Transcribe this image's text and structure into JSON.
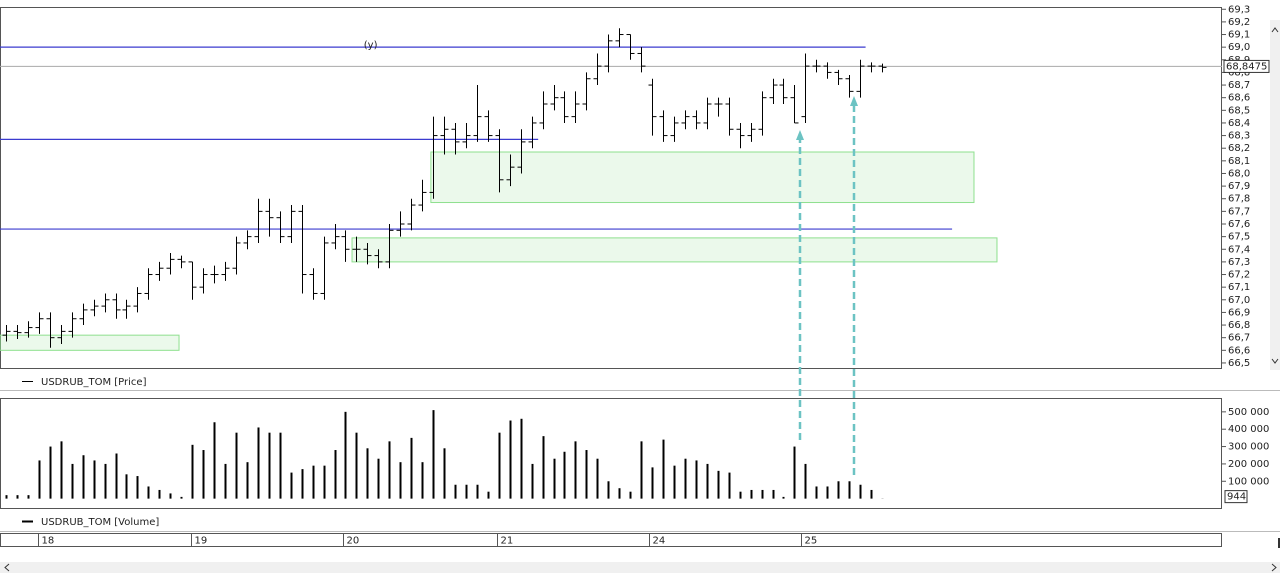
{
  "chart_data": [
    {
      "type": "ohlc",
      "annotation": "(y)",
      "annotation_x": 33.3,
      "annotation_y": 69.0,
      "xlim": [
        -0.55,
        111.05
      ],
      "ylim": [
        66.46,
        69.31
      ],
      "yticks": [
        {
          "value": 66.5,
          "label": "66,5"
        },
        {
          "value": 66.6,
          "label": "66,6"
        },
        {
          "value": 66.7,
          "label": "66,7"
        },
        {
          "value": 66.8,
          "label": "66,8"
        },
        {
          "value": 66.9,
          "label": "66,9"
        },
        {
          "value": 67.0,
          "label": "67,0"
        },
        {
          "value": 67.1,
          "label": "67,1"
        },
        {
          "value": 67.2,
          "label": "67,2"
        },
        {
          "value": 67.3,
          "label": "67,3"
        },
        {
          "value": 67.4,
          "label": "67,4"
        },
        {
          "value": 67.5,
          "label": "67,5"
        },
        {
          "value": 67.6,
          "label": "67,6"
        },
        {
          "value": 67.7,
          "label": "67,7"
        },
        {
          "value": 67.8,
          "label": "67,8"
        },
        {
          "value": 67.9,
          "label": "67,9"
        },
        {
          "value": 68.0,
          "label": "68,0"
        },
        {
          "value": 68.1,
          "label": "68,1"
        },
        {
          "value": 68.2,
          "label": "68,2"
        },
        {
          "value": 68.3,
          "label": "68,3"
        },
        {
          "value": 68.4,
          "label": "68,4"
        },
        {
          "value": 68.5,
          "label": "68,5"
        },
        {
          "value": 68.6,
          "label": "68,6"
        },
        {
          "value": 68.7,
          "label": "68,7"
        },
        {
          "value": 68.8,
          "label": "68,8"
        },
        {
          "value": 68.9,
          "label": "68,9"
        },
        {
          "value": 69.0,
          "label": "69,0"
        },
        {
          "value": 69.1,
          "label": "69,1"
        },
        {
          "value": 69.2,
          "label": "69,2"
        },
        {
          "value": 69.3,
          "label": "69,3"
        }
      ],
      "last_price": {
        "value": 68.8475,
        "label": "68,8475"
      },
      "hlines": [
        {
          "value": 69.0,
          "xlim": [
            -0.55,
            78.5
          ],
          "color": "#3b3bcf"
        },
        {
          "value": 68.27,
          "xlim": [
            -0.55,
            48.6
          ],
          "color": "#3b3bcf"
        },
        {
          "value": 67.56,
          "xlim": [
            -0.55,
            86.4
          ],
          "color": "#3b3bcf"
        }
      ],
      "zones": [
        {
          "ylim": [
            66.6,
            66.72
          ],
          "xlim": [
            -0.55,
            15.8
          ],
          "color": "#8ee08e"
        },
        {
          "ylim": [
            67.77,
            68.17
          ],
          "xlim": [
            38.8,
            88.4
          ],
          "color": "#8ee08e"
        },
        {
          "ylim": [
            67.3,
            67.49
          ],
          "xlim": [
            31.6,
            90.5
          ],
          "color": "#8ee08e"
        }
      ],
      "series": [
        {
          "name": "USDRUB_TOM [Price]",
          "color": "#000000",
          "open": [
            66.72,
            66.75,
            66.74,
            66.78,
            66.85,
            66.7,
            66.75,
            66.85,
            66.92,
            66.95,
            67.0,
            66.92,
            66.95,
            67.05,
            67.2,
            67.25,
            67.32,
            67.3,
            67.1,
            67.2,
            67.2,
            67.25,
            67.45,
            67.5,
            67.7,
            67.65,
            67.5,
            67.7,
            67.2,
            67.05,
            67.45,
            67.5,
            67.4,
            67.4,
            67.35,
            67.3,
            67.55,
            67.6,
            67.75,
            67.85,
            68.3,
            68.35,
            68.25,
            68.3,
            68.45,
            68.3,
            67.95,
            68.05,
            68.25,
            68.4,
            68.55,
            68.6,
            68.45,
            68.55,
            68.75,
            68.85,
            69.05,
            69.1,
            68.95,
            68.7,
            68.45,
            68.3,
            68.4,
            68.45,
            68.4,
            68.55,
            68.55,
            68.35,
            68.3,
            68.35,
            68.6,
            68.7,
            68.6,
            68.45,
            68.85,
            68.85,
            68.8,
            68.75,
            68.65,
            68.85,
            68.85
          ],
          "high": [
            66.8,
            66.8,
            66.83,
            66.9,
            66.9,
            66.8,
            66.9,
            66.97,
            67.0,
            67.05,
            67.05,
            67.0,
            67.1,
            67.25,
            67.3,
            67.37,
            67.35,
            67.3,
            67.25,
            67.27,
            67.3,
            67.5,
            67.55,
            67.8,
            67.8,
            67.7,
            67.75,
            67.75,
            67.25,
            67.5,
            67.6,
            67.55,
            67.5,
            67.45,
            67.4,
            67.6,
            67.7,
            67.8,
            67.95,
            68.45,
            68.45,
            68.4,
            68.4,
            68.7,
            68.5,
            68.35,
            68.15,
            68.35,
            68.45,
            68.65,
            68.7,
            68.65,
            68.65,
            68.8,
            68.95,
            69.1,
            69.15,
            69.1,
            69.0,
            68.75,
            68.5,
            68.45,
            68.5,
            68.5,
            68.6,
            68.6,
            68.6,
            68.4,
            68.4,
            68.65,
            68.75,
            68.75,
            68.7,
            68.95,
            68.9,
            68.88,
            68.82,
            68.78,
            68.9,
            68.88,
            68.87
          ],
          "low": [
            66.67,
            66.69,
            66.7,
            66.73,
            66.62,
            66.65,
            66.7,
            66.8,
            66.87,
            66.9,
            66.85,
            66.85,
            66.9,
            67.0,
            67.15,
            67.2,
            67.25,
            67.0,
            67.05,
            67.13,
            67.15,
            67.2,
            67.4,
            67.45,
            67.5,
            67.45,
            67.45,
            67.05,
            67.0,
            67.0,
            67.4,
            67.3,
            67.3,
            67.28,
            67.25,
            67.25,
            67.5,
            67.55,
            67.7,
            67.8,
            68.15,
            68.15,
            68.2,
            68.25,
            68.25,
            67.85,
            67.9,
            68.0,
            68.2,
            68.35,
            68.5,
            68.4,
            68.4,
            68.5,
            68.7,
            68.8,
            69.0,
            68.9,
            68.8,
            68.3,
            68.25,
            68.25,
            68.35,
            68.35,
            68.35,
            68.45,
            68.3,
            68.2,
            68.25,
            68.3,
            68.55,
            68.55,
            68.4,
            68.4,
            68.8,
            68.75,
            68.7,
            68.6,
            68.6,
            68.8,
            68.8
          ],
          "close": [
            66.75,
            66.74,
            66.78,
            66.85,
            66.7,
            66.75,
            66.85,
            66.92,
            66.95,
            67.0,
            66.92,
            66.95,
            67.05,
            67.2,
            67.25,
            67.32,
            67.3,
            67.1,
            67.2,
            67.2,
            67.25,
            67.45,
            67.5,
            67.7,
            67.65,
            67.5,
            67.7,
            67.2,
            67.05,
            67.45,
            67.5,
            67.4,
            67.4,
            67.35,
            67.3,
            67.55,
            67.6,
            67.75,
            67.85,
            68.3,
            68.35,
            68.25,
            68.3,
            68.45,
            68.3,
            67.95,
            68.05,
            68.25,
            68.4,
            68.55,
            68.6,
            68.45,
            68.55,
            68.75,
            68.85,
            69.05,
            69.1,
            68.95,
            68.85,
            68.45,
            68.3,
            68.4,
            68.45,
            68.4,
            68.55,
            68.55,
            68.35,
            68.3,
            68.35,
            68.6,
            68.7,
            68.6,
            68.4,
            68.85,
            68.85,
            68.8,
            68.75,
            68.65,
            68.85,
            68.85,
            68.84
          ]
        }
      ]
    },
    {
      "type": "bar",
      "xlim": [
        -0.55,
        111.05
      ],
      "ylim": [
        -54000,
        574000
      ],
      "yticks": [
        {
          "value": 100000,
          "label": "100 000"
        },
        {
          "value": 200000,
          "label": "200 000"
        },
        {
          "value": 300000,
          "label": "300 000"
        },
        {
          "value": 400000,
          "label": "400 000"
        },
        {
          "value": 500000,
          "label": "500 000"
        }
      ],
      "xticks": [
        {
          "value": 2.9,
          "label": "18"
        },
        {
          "value": 16.9,
          "label": "19"
        },
        {
          "value": 30.8,
          "label": "20"
        },
        {
          "value": 44.8,
          "label": "21"
        },
        {
          "value": 58.7,
          "label": "24"
        },
        {
          "value": 72.6,
          "label": "25"
        }
      ],
      "series": [
        {
          "name": "USDRUB_TOM [Volume]",
          "color": "#000000",
          "values": [
            20000,
            20000,
            20000,
            220000,
            300000,
            330000,
            200000,
            250000,
            220000,
            200000,
            260000,
            140000,
            130000,
            70000,
            50000,
            30000,
            10000,
            310000,
            280000,
            440000,
            200000,
            380000,
            210000,
            410000,
            380000,
            380000,
            150000,
            170000,
            190000,
            190000,
            280000,
            500000,
            380000,
            290000,
            230000,
            330000,
            210000,
            350000,
            210000,
            510000,
            290000,
            80000,
            80000,
            80000,
            40000,
            380000,
            450000,
            460000,
            200000,
            360000,
            230000,
            270000,
            330000,
            280000,
            230000,
            100000,
            60000,
            40000,
            330000,
            180000,
            340000,
            190000,
            230000,
            220000,
            200000,
            160000,
            150000,
            40000,
            50000,
            50000,
            50000,
            10000,
            300000,
            200000,
            70000,
            70000,
            100000,
            100000,
            80000,
            50000,
            944
          ]
        }
      ]
    }
  ]
}
